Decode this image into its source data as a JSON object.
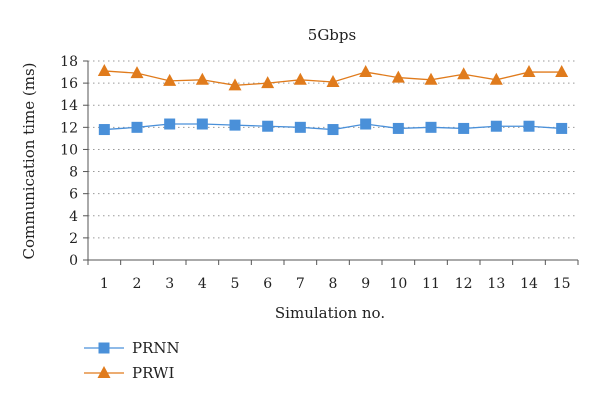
{
  "chart_data": {
    "type": "line",
    "title": "5Gbps",
    "xlabel": "Simulation no.",
    "ylabel": "Communication time (ms)",
    "categories": [
      "1",
      "2",
      "3",
      "4",
      "5",
      "6",
      "7",
      "8",
      "9",
      "10",
      "11",
      "12",
      "13",
      "14",
      "15"
    ],
    "ylim": [
      0,
      18
    ],
    "yticks": [
      0,
      2,
      4,
      6,
      8,
      10,
      12,
      14,
      16,
      18
    ],
    "grid": "horizontal-dotted",
    "legend_position": "bottom-left",
    "series": [
      {
        "name": "PRNN",
        "marker": "square",
        "color": "#4a90d9",
        "values": [
          11.8,
          12.0,
          12.3,
          12.3,
          12.2,
          12.1,
          12.0,
          11.8,
          12.3,
          11.9,
          12.0,
          11.9,
          12.1,
          12.1,
          11.9
        ]
      },
      {
        "name": "PRWI",
        "marker": "triangle",
        "color": "#e07b1c",
        "values": [
          17.1,
          16.9,
          16.2,
          16.3,
          15.8,
          16.0,
          16.3,
          16.1,
          17.0,
          16.5,
          16.3,
          16.8,
          16.3,
          17.0,
          17.0
        ]
      }
    ]
  }
}
